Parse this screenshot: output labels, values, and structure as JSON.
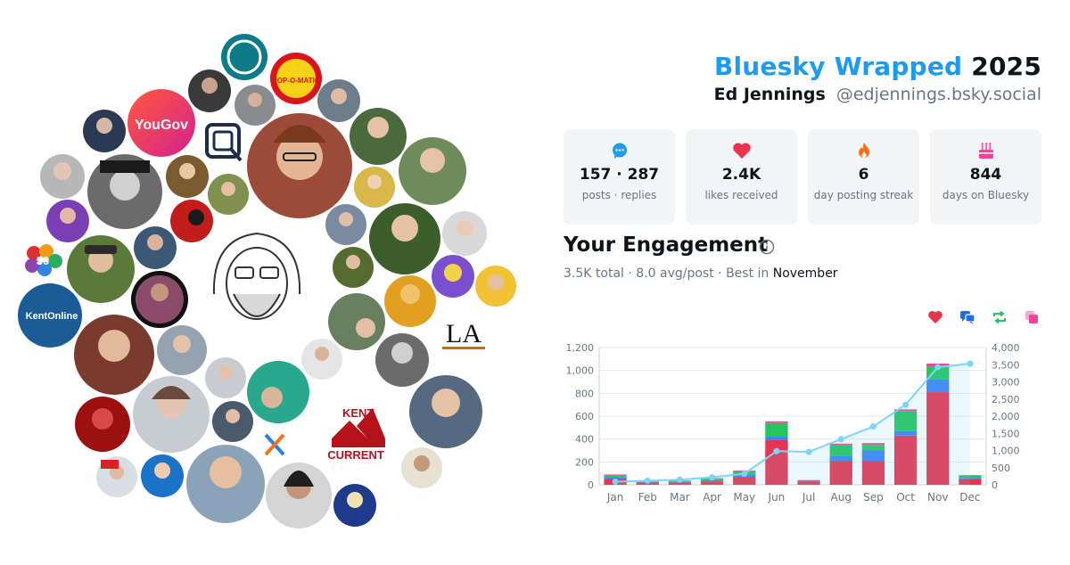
{
  "header": {
    "brand": "Bluesky Wrapped",
    "year": "2025",
    "name": "Ed Jennings",
    "handle": "@edjennings.bsky.social"
  },
  "stats": [
    {
      "icon": "chat-bubble-icon",
      "value": "157 · 287",
      "label": "posts · replies",
      "color": "#1d9bf0"
    },
    {
      "icon": "heart-icon",
      "value": "2.4K",
      "label": "likes received",
      "color": "#e8344e"
    },
    {
      "icon": "flame-icon",
      "value": "6",
      "label": "day posting streak",
      "color": "#f97316"
    },
    {
      "icon": "cake-icon",
      "value": "844",
      "label": "days on Bluesky",
      "color": "#ec4899"
    }
  ],
  "engagement": {
    "title": "Your Engagement",
    "total": "3.5K total",
    "avg": "8.0 avg/post",
    "best_prefix": "Best in",
    "best_month": "November"
  },
  "legend_icons": [
    {
      "icon": "heart-icon",
      "color": "#e8344e"
    },
    {
      "icon": "reply-bubble-icon",
      "color": "#1d6fe8"
    },
    {
      "icon": "repost-icon",
      "color": "#22c55e"
    },
    {
      "icon": "quote-icon",
      "color": "#ec4899"
    }
  ],
  "collage_logos": {
    "yougov": "YouGov",
    "kentonline": "KentOnline",
    "la": "LA",
    "kent": "KENT",
    "current": "CURRENT",
    "popomatic": "POP-O-MATIC",
    "thirty": "30"
  },
  "chart_data": {
    "type": "bar",
    "categories": [
      "Jan",
      "Feb",
      "Mar",
      "Apr",
      "May",
      "Jun",
      "Jul",
      "Aug",
      "Sep",
      "Oct",
      "Nov",
      "Dec"
    ],
    "series": [
      {
        "type": "bar",
        "color": "#e8344e",
        "values": [
          50,
          20,
          20,
          30,
          70,
          390,
          30,
          210,
          210,
          430,
          810,
          50
        ]
      },
      {
        "type": "bar",
        "color": "#3b82f6",
        "values": [
          15,
          5,
          5,
          10,
          20,
          30,
          5,
          40,
          90,
          40,
          110,
          10
        ]
      },
      {
        "type": "bar",
        "color": "#22c55e",
        "values": [
          20,
          10,
          10,
          15,
          30,
          120,
          5,
          100,
          50,
          170,
          110,
          20
        ]
      },
      {
        "type": "bar",
        "color": "#ec4899",
        "values": [
          5,
          2,
          2,
          3,
          5,
          15,
          2,
          10,
          15,
          20,
          30,
          5
        ]
      },
      {
        "type": "line",
        "color": "#7dd3fc",
        "axis": "right",
        "values": [
          90,
          120,
          150,
          220,
          320,
          980,
          960,
          1330,
          1700,
          2330,
          3430,
          3530
        ]
      }
    ],
    "ylim": [
      0,
      1200
    ],
    "y2lim": [
      0,
      4000
    ],
    "yticks": [
      "0",
      "200",
      "400",
      "600",
      "800",
      "1,000",
      "1,200"
    ],
    "y2ticks": [
      "0",
      "500",
      "1,000",
      "1,500",
      "2,000",
      "2,500",
      "3,000",
      "3,500",
      "4,000"
    ],
    "grid": true
  }
}
